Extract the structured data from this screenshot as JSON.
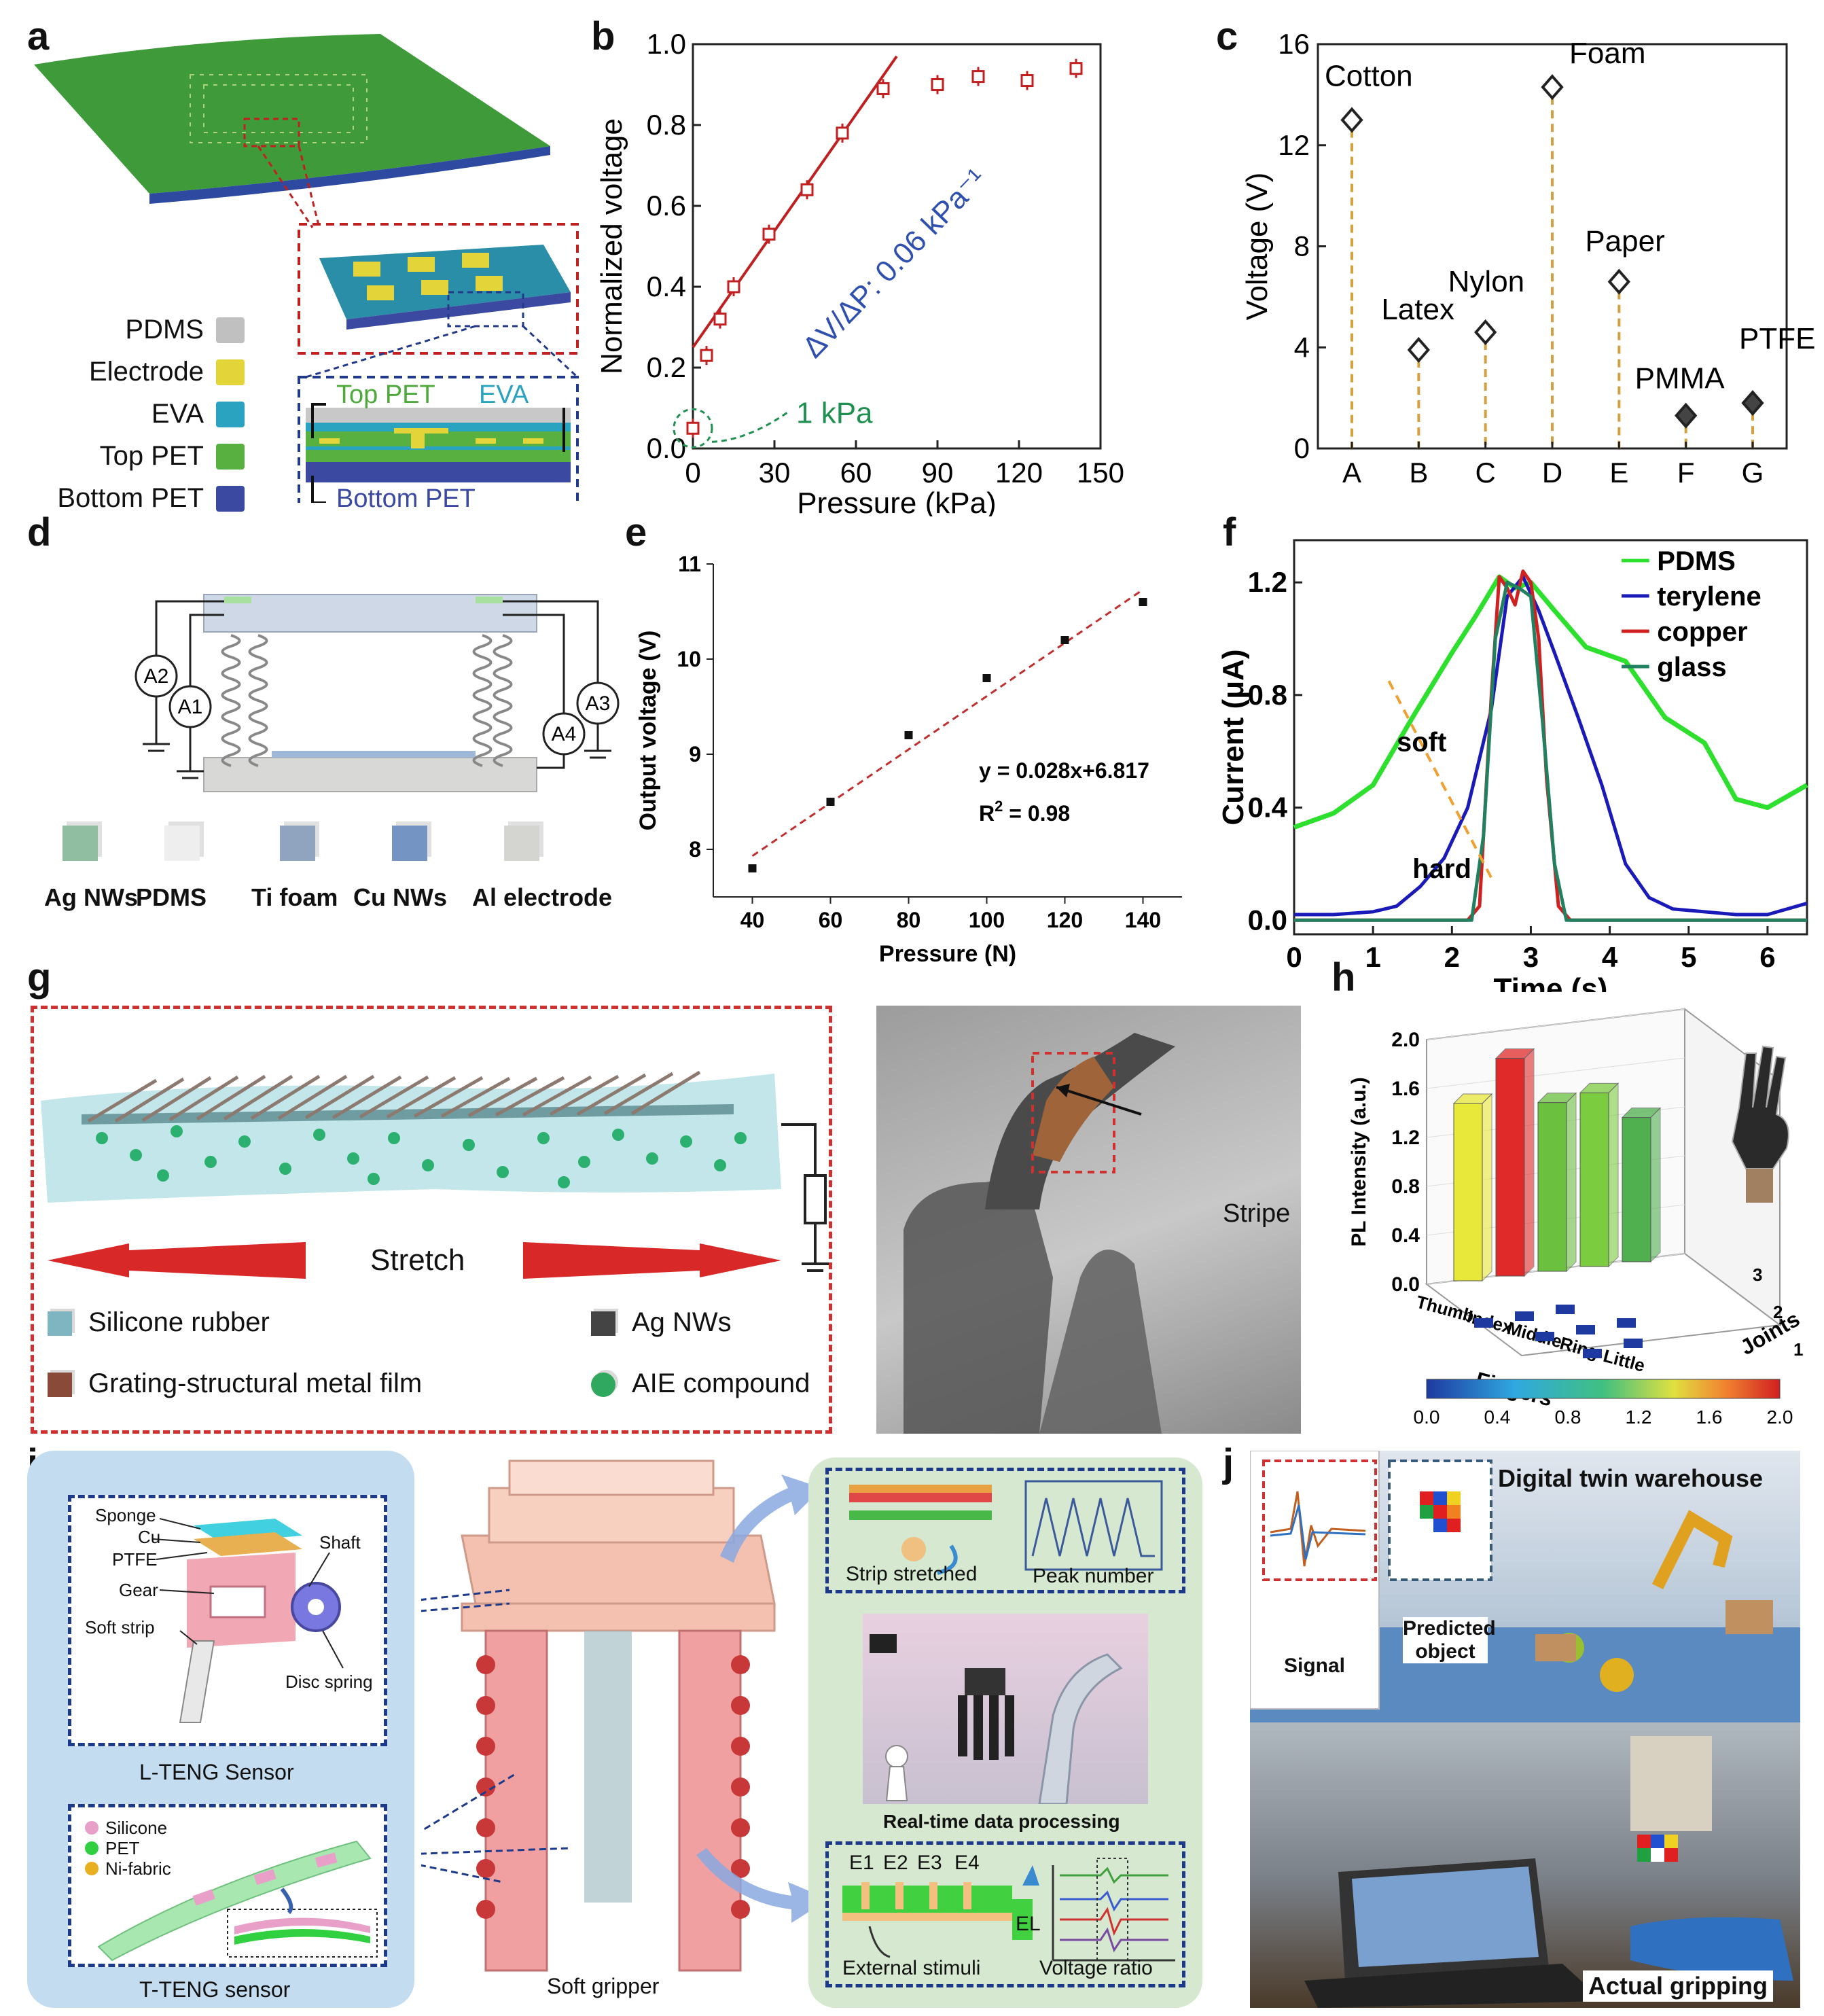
{
  "panel_labels": [
    "a",
    "b",
    "c",
    "d",
    "e",
    "f",
    "g",
    "h",
    "i",
    "j"
  ],
  "panel_a": {
    "legend": [
      {
        "label": "PDMS",
        "color": "#c0c0c0"
      },
      {
        "label": "Electrode",
        "color": "#e3d43a"
      },
      {
        "label": "EVA",
        "color": "#2aa3c0"
      },
      {
        "label": "Top PET",
        "color": "#58b040"
      },
      {
        "label": "Bottom PET",
        "color": "#3b4aa0"
      }
    ],
    "callout_top_pet": "Top PET",
    "callout_eva": "EVA",
    "callout_bottom_pet": "Bottom PET"
  },
  "chart_data": [
    {
      "id": "b",
      "type": "scatter",
      "xlabel": "Pressure (kPa)",
      "ylabel": "Normalized voltage",
      "xlim": [
        0,
        150
      ],
      "ylim": [
        0.0,
        1.0
      ],
      "xticks": [
        "0",
        "30",
        "60",
        "90",
        "120",
        "150"
      ],
      "yticks": [
        "0.0",
        "0.2",
        "0.4",
        "0.6",
        "0.8",
        "1.0"
      ],
      "x": [
        0,
        5,
        10,
        15,
        28,
        42,
        55,
        70,
        90,
        105,
        123,
        141
      ],
      "y": [
        0.05,
        0.23,
        0.32,
        0.4,
        0.53,
        0.64,
        0.78,
        0.89,
        0.9,
        0.92,
        0.91,
        0.94
      ],
      "fit_line": {
        "x": [
          0,
          75
        ],
        "y": [
          0.25,
          0.97
        ]
      },
      "annotation_slope": "ΔV/ΔP: 0.06 kPa⁻¹",
      "annotation_point": "1 kPa"
    },
    {
      "id": "c",
      "type": "scatter",
      "xlabel": "",
      "ylabel": "Voltage (V)",
      "ylim": [
        0,
        16
      ],
      "yticks": [
        "0",
        "4",
        "8",
        "12",
        "16"
      ],
      "categories": [
        "A",
        "B",
        "C",
        "D",
        "E",
        "F",
        "G"
      ],
      "values": [
        13.0,
        3.9,
        4.6,
        14.3,
        6.6,
        1.3,
        1.8
      ],
      "point_labels": [
        "Cotton",
        "Latex",
        "Nylon",
        "Foam",
        "Paper",
        "PMMA",
        "PTFE"
      ]
    },
    {
      "id": "e",
      "type": "scatter",
      "xlabel": "Pressure (N)",
      "ylabel": "Output voltage (V)",
      "xlim": [
        30,
        150
      ],
      "ylim": [
        7.5,
        11
      ],
      "xticks": [
        "40",
        "60",
        "80",
        "100",
        "120",
        "140"
      ],
      "yticks": [
        "8",
        "9",
        "10",
        "11"
      ],
      "x": [
        40,
        60,
        80,
        100,
        120,
        140
      ],
      "y": [
        7.8,
        8.5,
        9.2,
        9.8,
        10.2,
        10.6
      ],
      "fit_line": {
        "x": [
          40,
          140
        ],
        "y": [
          7.93,
          10.73
        ]
      },
      "equation": "y = 0.028x+6.817",
      "r2_label": "R",
      "r2_sup": "2",
      "r2_value": " = 0.98"
    },
    {
      "id": "f",
      "type": "line",
      "xlabel": "Time (s)",
      "ylabel": "Current (μA)",
      "xlim": [
        0,
        6.5
      ],
      "ylim": [
        -0.05,
        1.35
      ],
      "xticks": [
        "0",
        "1",
        "2",
        "3",
        "4",
        "5",
        "6"
      ],
      "yticks": [
        "0.0",
        "0.4",
        "0.8",
        "1.2"
      ],
      "series": [
        {
          "name": "PDMS",
          "color": "#2ee02e",
          "x": [
            0,
            0.5,
            1.0,
            1.5,
            2.0,
            2.3,
            2.6,
            2.8,
            3.0,
            3.3,
            3.7,
            4.2,
            4.7,
            5.2,
            5.6,
            6.0,
            6.5
          ],
          "y": [
            0.33,
            0.38,
            0.48,
            0.72,
            0.95,
            1.08,
            1.22,
            1.18,
            1.2,
            1.1,
            0.97,
            0.92,
            0.72,
            0.63,
            0.43,
            0.4,
            0.48
          ]
        },
        {
          "name": "terylene",
          "color": "#1a1ab8",
          "x": [
            0,
            0.5,
            1.0,
            1.3,
            1.6,
            1.9,
            2.2,
            2.5,
            2.7,
            2.9,
            3.1,
            3.3,
            3.6,
            3.9,
            4.2,
            4.5,
            4.8,
            5.2,
            5.6,
            6.0,
            6.5
          ],
          "y": [
            0.02,
            0.02,
            0.03,
            0.05,
            0.12,
            0.22,
            0.4,
            0.75,
            1.15,
            1.22,
            1.1,
            0.95,
            0.72,
            0.48,
            0.2,
            0.08,
            0.04,
            0.03,
            0.02,
            0.02,
            0.06
          ]
        },
        {
          "name": "copper",
          "color": "#d02020",
          "x": [
            0,
            2.2,
            2.35,
            2.5,
            2.6,
            2.7,
            2.8,
            2.9,
            3.0,
            3.1,
            3.2,
            3.35,
            3.5,
            6.5
          ],
          "y": [
            0.0,
            0.0,
            0.05,
            0.8,
            1.22,
            1.18,
            1.12,
            1.24,
            1.2,
            1.0,
            0.5,
            0.05,
            0.0,
            0.0
          ]
        },
        {
          "name": "glass",
          "color": "#208060",
          "x": [
            0,
            2.25,
            2.4,
            2.55,
            2.7,
            2.85,
            3.0,
            3.15,
            3.3,
            3.45,
            6.5
          ],
          "y": [
            0.0,
            0.0,
            0.3,
            1.0,
            1.2,
            1.18,
            1.15,
            0.7,
            0.2,
            0.0,
            0.0
          ]
        }
      ],
      "annotation_soft": "soft",
      "annotation_hard": "hard"
    },
    {
      "id": "h",
      "type": "bar",
      "title": "",
      "ylabel": "PL Intensity (a.u.)",
      "xlabel": "Fingers",
      "zlabel": "Joints",
      "yticks": [
        "0.0",
        "0.4",
        "0.8",
        "1.2",
        "1.6",
        "2.0"
      ],
      "categories": [
        "Thumb",
        "Index",
        "Middle",
        "Ring",
        "Little"
      ],
      "joints": [
        "1",
        "2",
        "3"
      ],
      "values": [
        1.45,
        1.78,
        1.38,
        1.42,
        1.18
      ],
      "bar_colors": [
        "#e8e83a",
        "#e02a2a",
        "#6cc040",
        "#7ccc40",
        "#50b050"
      ],
      "colorbar_ticks": [
        "0.0",
        "0.4",
        "0.8",
        "1.2",
        "1.6",
        "2.0"
      ]
    }
  ],
  "panel_d": {
    "meters": [
      "A2",
      "A1",
      "A4",
      "A3"
    ],
    "materials": [
      {
        "label": "Ag NWs",
        "color": "#8fbfa0"
      },
      {
        "label": "PDMS",
        "color": "#eeeeee"
      },
      {
        "label": "Ti foam",
        "color": "#90a4c0"
      },
      {
        "label": "Cu NWs",
        "color": "#7494c4"
      },
      {
        "label": "Al electrode",
        "color": "#d4d4d0"
      }
    ]
  },
  "panel_g": {
    "stretch_label": "Stretch",
    "stripe_label": "Stripe",
    "legend": [
      {
        "label": "Silicone rubber",
        "color": "#7fb5c0"
      },
      {
        "label": "Ag NWs",
        "color": "#444444"
      },
      {
        "label": "Grating-structural metal film",
        "color": "#8a4a3a"
      },
      {
        "label": "AIE compound",
        "color": "#30a860"
      }
    ]
  },
  "panel_i": {
    "l_teng_labels": [
      "Sponge",
      "Cu",
      "PTFE",
      "Gear",
      "Soft strip",
      "Shaft",
      "Disc spring"
    ],
    "l_teng_title": "L-TENG Sensor",
    "t_teng_legend": [
      {
        "label": "Silicone",
        "color": "#e8a0c8"
      },
      {
        "label": "PET",
        "color": "#30d040"
      },
      {
        "label": "Ni-fabric",
        "color": "#e8b020"
      }
    ],
    "t_teng_title": "T-TENG sensor",
    "gripper_label": "Soft gripper",
    "strip_stretched": "Strip stretched",
    "peak_number": "Peak number",
    "realtime": "Real-time data processing",
    "electrodes": [
      "E1",
      "E2",
      "E3",
      "E4",
      "EL"
    ],
    "external_stimuli": "External stimuli",
    "voltage_ratio": "Voltage ratio"
  },
  "panel_j": {
    "title": "Digital twin warehouse",
    "signal": "Signal",
    "predicted": "Predicted object",
    "actual": "Actual gripping"
  }
}
